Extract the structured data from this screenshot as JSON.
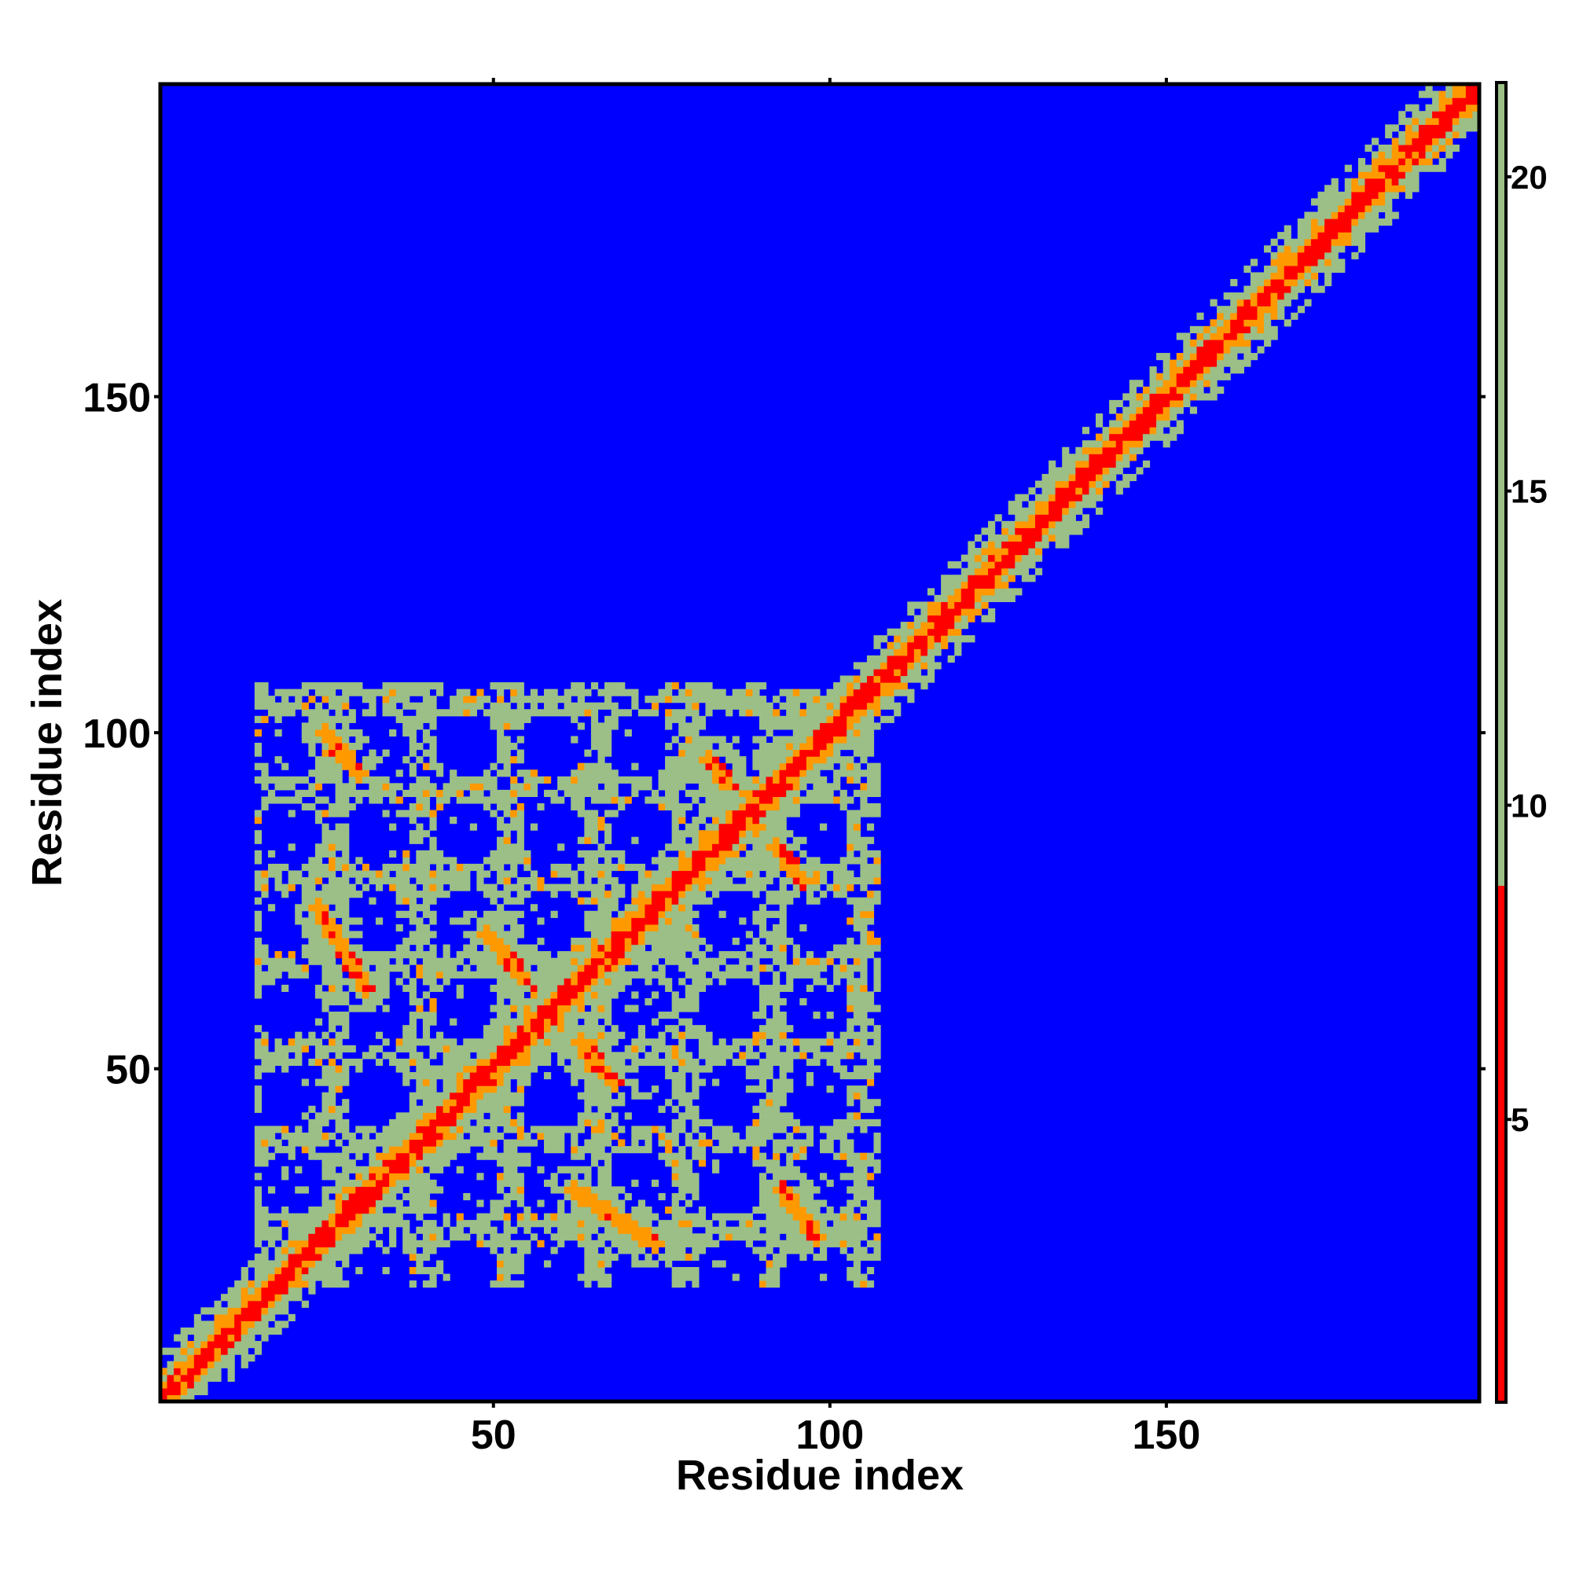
{
  "chart_data": {
    "type": "heatmap",
    "title": "",
    "xlabel": "Residue index",
    "ylabel": "Residue index",
    "xlim": [
      1,
      196
    ],
    "ylim": [
      1,
      196
    ],
    "x_ticks": [
      50,
      100,
      150
    ],
    "y_ticks": [
      50,
      100,
      150
    ],
    "colorbar": {
      "range": [
        0.5,
        21.5
      ],
      "ticks": [
        5,
        10,
        15,
        20
      ],
      "colors": {
        "low": "#ff0000",
        "mid": "#ff9900",
        "contact": "#9bbf86",
        "far": "#0000ff",
        "top": "#2f56c8"
      }
    },
    "features": {
      "main_diagonal": "residue i vs i, distance near 0 (red), from 1 to 196",
      "off_diagonal_contacts": [
        {
          "from": [
            25,
            100
          ],
          "to": [
            30,
            94
          ]
        },
        {
          "from": [
            24,
            74
          ],
          "to": [
            31,
            62
          ]
        },
        {
          "from": [
            49,
            70
          ],
          "to": [
            68,
            48
          ]
        },
        {
          "from": [
            82,
            96
          ],
          "to": [
            96,
            78
          ]
        },
        {
          "from": [
            62,
            32
          ],
          "to": [
            74,
            24
          ]
        },
        {
          "from": [
            93,
            32
          ],
          "to": [
            98,
            25
          ]
        }
      ],
      "contact_block": {
        "x": [
          15,
          107
        ],
        "y": [
          18,
          107
        ]
      }
    }
  }
}
